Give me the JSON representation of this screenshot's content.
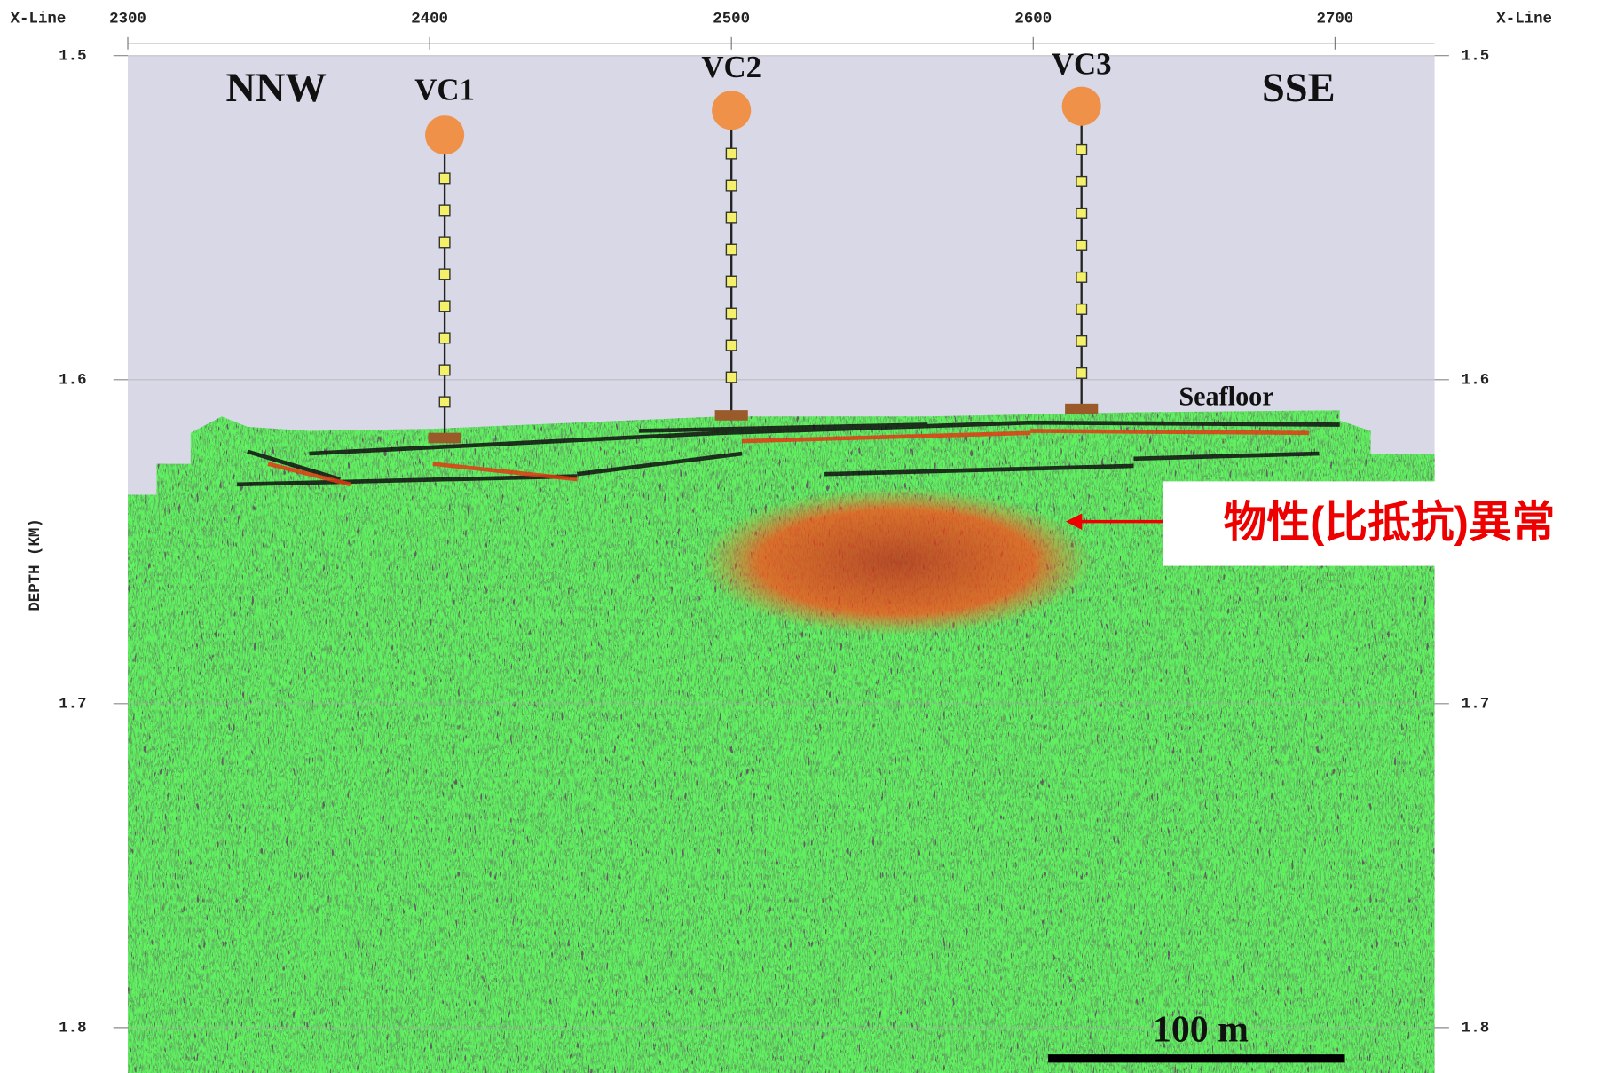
{
  "chart_data": {
    "type": "seismic-section",
    "x_label": "X-Line",
    "y_label": "DEPTH (KM)",
    "xlim": [
      2300,
      2733
    ],
    "ylim": [
      1.5,
      1.814
    ],
    "xticks": [
      2300,
      2400,
      2500,
      2600,
      2700
    ],
    "yticks": [
      1.5,
      1.6,
      1.7,
      1.8
    ],
    "grid": true,
    "directions": [
      "NNW",
      "SSE"
    ],
    "stations": [
      {
        "name": "VC1",
        "x": 2405,
        "seafloor": 1.618
      },
      {
        "name": "VC2",
        "x": 2500,
        "seafloor": 1.611
      },
      {
        "name": "VC3",
        "x": 2616,
        "seafloor": 1.609
      }
    ],
    "seafloor_label": "Seafloor",
    "anomaly_label": "物性(比抵抗)異常",
    "scale_bar_label": "100 m"
  }
}
